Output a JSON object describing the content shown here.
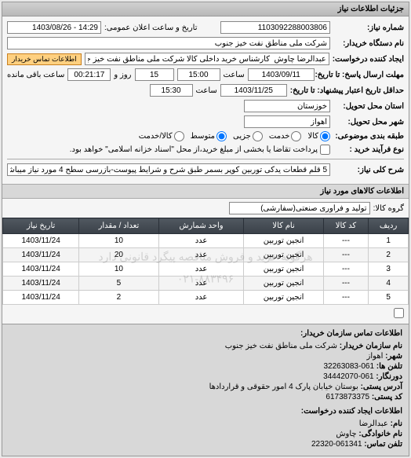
{
  "header": {
    "title": "جزئیات اطلاعات نیاز"
  },
  "form": {
    "req_no_label": "شماره نیاز:",
    "req_no": "1103092288003806",
    "announce_label": "تاریخ و ساعت اعلان عمومی:",
    "announce_value": "14:29 - 1403/08/26",
    "buyer_label": "نام دستگاه خریدار:",
    "buyer": "شرکت ملی مناطق نفت خیز جنوب",
    "creator_label": "ایجاد کننده درخواست:",
    "creator": "عبدالرضا چاوش  کارشناس خرید داخلی کالا شرکت ملی مناطق نفت خیز جنوب",
    "contact_btn": "اطلاعات تماس خریدار",
    "reply_deadline_label": "مهلت ارسال پاسخ: تا تاریخ:",
    "reply_date": "1403/09/11",
    "time_label": "ساعت",
    "reply_time": "15:00",
    "days_label": "روز و",
    "days": "15",
    "remain_label": "ساعت باقی مانده",
    "remain_time": "00:21:17",
    "credit_deadline_label": "حداقل تاریخ اعتبار پیشنهاد: تا تاریخ:",
    "credit_date": "1403/11/25",
    "credit_time": "15:30",
    "province_label": "استان محل تحویل:",
    "province": "خوزستان",
    "city_label": "شهر محل تحویل:",
    "city": "اهواز",
    "topic_group_label": "طبقه بندی موضوعی:",
    "topic_opts": {
      "goods": "کالا",
      "service": "خدمت"
    },
    "topic_options_rest": {
      "part": "جزیی",
      "mid": "متوسط",
      "cash": "کالا/خدمت"
    },
    "process_label": "نوع فرآیند خرید :",
    "process_note": "پرداخت تقاضا یا بخشی از مبلغ خرید،از محل \"اسناد خزانه اسلامی\" خواهد بود.",
    "need_title_label": "شرح کلی نیاز:",
    "need_title": "5 قلم قطعات یدکی توربین کوپر بسمر طبق شرح و شرایط پیوست-بازرسی سطح 4 مورد نیاز میباشد"
  },
  "goods": {
    "section_title": "اطلاعات کالاهای مورد نیاز",
    "group_label": "گروه کالا:",
    "group_value": "تولید و فرآوری صنعتی(سفارشی)",
    "columns": [
      "ردیف",
      "کد کالا",
      "نام کالا",
      "واحد شمارش",
      "تعداد / مقدار",
      "تاریخ نیاز"
    ],
    "rows": [
      [
        "1",
        "---",
        "انجین توربین",
        "عدد",
        "10",
        "1403/11/24"
      ],
      [
        "2",
        "---",
        "انجین توربین",
        "عدد",
        "20",
        "1403/11/24"
      ],
      [
        "3",
        "---",
        "انجین توربین",
        "عدد",
        "10",
        "1403/11/24"
      ],
      [
        "4",
        "---",
        "انجین توربین",
        "عدد",
        "5",
        "1403/11/24"
      ],
      [
        "5",
        "---",
        "انجین توربین",
        "عدد",
        "2",
        "1403/11/24"
      ]
    ],
    "watermark": "هرگونه خرید و فروش مناقصه پیگرد قانونی دارد",
    "watermark2": "۰۲۱-۸۸۳۴۹۶"
  },
  "org": {
    "title": "اطلاعات تماس سازمان خریدار:",
    "org_name_label": "نام سازمان خریدار:",
    "org_name": "شرکت ملی مناطق نفت خیز جنوب",
    "city_label": "شهر:",
    "city": "اهواز",
    "tel_label": "تلفن ها:",
    "tel": "061-32263083",
    "fax_label": "دورنگار:",
    "fax": "061-34442070",
    "addr_label": "آدرس پستی:",
    "addr": "بوستان خیابان پارک 4 امور حقوقی و قراردادها",
    "zip_label": "کد پستی:",
    "zip": "6173873375",
    "creator_title": "اطلاعات ایجاد کننده درخواست:",
    "fname_label": "نام:",
    "fname": "عبدالرضا",
    "lname_label": "نام خانوادگی:",
    "lname": "چاوش",
    "phone_label": "تلفن تماس:",
    "phone": "061341-22320"
  }
}
